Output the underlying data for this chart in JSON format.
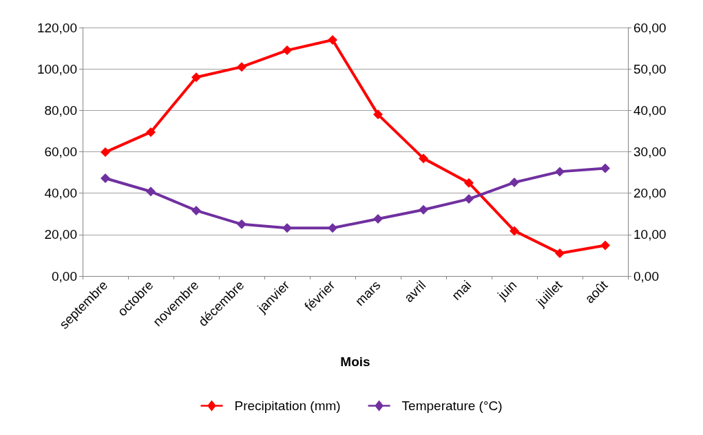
{
  "chart_data": {
    "type": "line",
    "xlabel": "Mois",
    "categories": [
      "septembre",
      "octobre",
      "novembre",
      "décembre",
      "janvier",
      "février",
      "mars",
      "avril",
      "mai",
      "juin",
      "juillet",
      "août"
    ],
    "series": [
      {
        "name": "Precipitation (mm)",
        "color": "#ff0000",
        "values": [
          59.8,
          69.5,
          96.0,
          101.0,
          109.0,
          114.0,
          78.0,
          56.8,
          45.0,
          21.8,
          11.0,
          14.8
        ]
      },
      {
        "name": "Temperature (°C)",
        "color": "#7030a0",
        "axis": "y2",
        "values": [
          23.6,
          20.4,
          15.8,
          12.5,
          11.6,
          11.6,
          13.8,
          16.0,
          18.6,
          22.6,
          25.2,
          26.0
        ]
      }
    ],
    "ylim": [
      0,
      120
    ],
    "yticks": [
      {
        "value": 0,
        "label": "0,00"
      },
      {
        "value": 20,
        "label": "20,00"
      },
      {
        "value": 40,
        "label": "40,00"
      },
      {
        "value": 60,
        "label": "60,00"
      },
      {
        "value": 80,
        "label": "80,00"
      },
      {
        "value": 100,
        "label": "100,00"
      },
      {
        "value": 120,
        "label": "120,00"
      }
    ],
    "y2lim": [
      0,
      60
    ],
    "y2ticks": [
      {
        "value": 0,
        "label": "0,00"
      },
      {
        "value": 10,
        "label": "10,00"
      },
      {
        "value": 20,
        "label": "20,00"
      },
      {
        "value": 30,
        "label": "30,00"
      },
      {
        "value": 40,
        "label": "40,00"
      },
      {
        "value": 50,
        "label": "50,00"
      },
      {
        "value": 60,
        "label": "60,00"
      }
    ],
    "grid": "y",
    "legend": "bottom",
    "marker": "diamond",
    "line_style": "solid"
  }
}
